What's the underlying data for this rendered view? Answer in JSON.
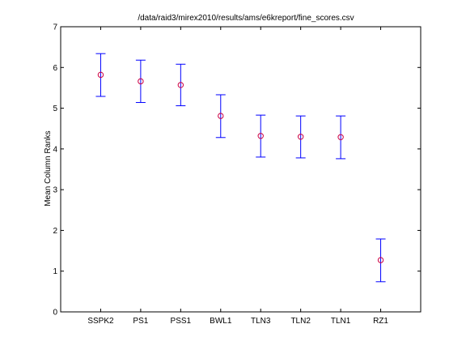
{
  "chart_data": {
    "type": "scatter",
    "title": "/data/raid3/mirex2010/results/ams/e6kreport/fine_scores.csv",
    "xlabel": "",
    "ylabel": "Mean Column Ranks",
    "categories": [
      "SSPK2",
      "PS1",
      "PSS1",
      "BWL1",
      "TLN3",
      "TLN2",
      "TLN1",
      "RZ1"
    ],
    "means": [
      5.82,
      5.66,
      5.57,
      4.81,
      4.32,
      4.3,
      4.29,
      1.27
    ],
    "lower": [
      5.29,
      5.14,
      5.06,
      4.28,
      3.8,
      3.78,
      3.76,
      0.74
    ],
    "upper": [
      6.34,
      6.18,
      6.08,
      5.33,
      4.83,
      4.81,
      4.81,
      1.79
    ],
    "ylim": [
      0,
      7
    ],
    "yticks": [
      0,
      1,
      2,
      3,
      4,
      5,
      6,
      7
    ],
    "grid": false,
    "colors": {
      "errorbar": "#0000ff",
      "marker": "#cc0044",
      "axes": "#000000"
    }
  }
}
